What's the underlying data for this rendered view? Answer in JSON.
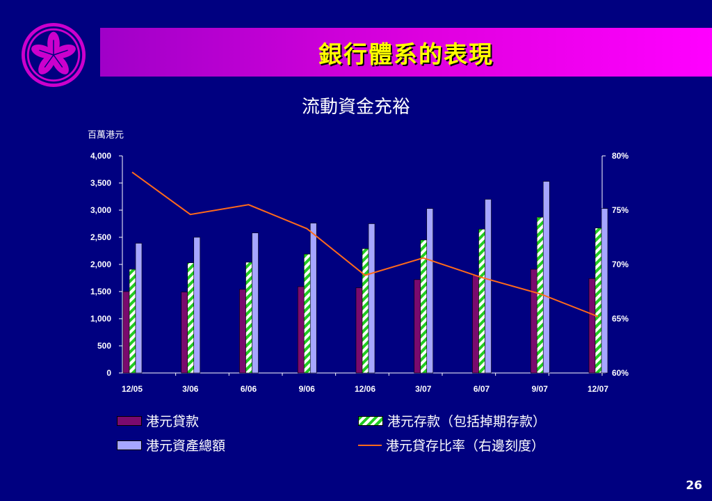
{
  "header": {
    "title": "銀行體系的表現"
  },
  "subtitle": "流動資金充裕",
  "page_number": "26",
  "chart_data": {
    "type": "bar",
    "title": "流動資金充裕",
    "y_unit_label": "百萬港元",
    "categories": [
      "12/05",
      "3/06",
      "6/06",
      "9/06",
      "12/06",
      "3/07",
      "6/07",
      "9/07",
      "12/07"
    ],
    "series": [
      {
        "name": "港元貸款",
        "values": [
          1500,
          1490,
          1540,
          1590,
          1570,
          1720,
          1800,
          1910,
          1740
        ],
        "color": "#7a0a6e",
        "axis": "left"
      },
      {
        "name": "港元存款（包括掉期存款）",
        "values": [
          1910,
          2030,
          2040,
          2190,
          2290,
          2450,
          2650,
          2870,
          2670
        ],
        "color": "#22cc22",
        "axis": "left"
      },
      {
        "name": "港元資產總額",
        "values": [
          2390,
          2500,
          2580,
          2760,
          2750,
          3030,
          3200,
          3530,
          3030
        ],
        "color": "#a6a6ff",
        "axis": "left"
      },
      {
        "name": "港元貸存比率（右邊刻度）",
        "type": "line",
        "values": [
          78.5,
          74.6,
          75.5,
          73.3,
          69.0,
          70.6,
          68.8,
          67.3,
          65.2
        ],
        "color": "#ff6a1a",
        "axis": "right"
      }
    ],
    "ylim": [
      0,
      4000
    ],
    "y_ticks": [
      "4,000",
      "3,500",
      "3,000",
      "2,500",
      "2,000",
      "1,500",
      "1,000",
      "500",
      "0"
    ],
    "y2lim": [
      60,
      80
    ],
    "y2_ticks": [
      "80%",
      "75%",
      "70%",
      "65%",
      "60%"
    ],
    "legend_position": "bottom",
    "grid": false
  },
  "legend": {
    "loans": "港元貸款",
    "deposits": "港元存款（包括掉期存款）",
    "assets": "港元資產總額",
    "ratio": "港元貸存比率（右邊刻度）"
  }
}
